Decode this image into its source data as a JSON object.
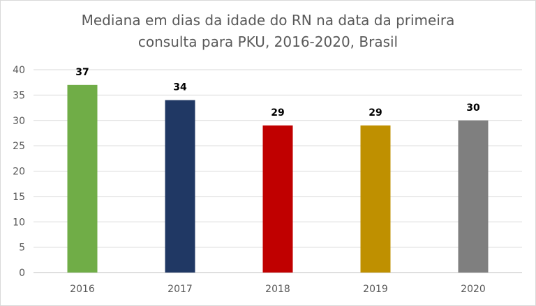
{
  "chart_data": {
    "type": "bar",
    "title_lines": [
      "Mediana em dias da idade do RN na data da primeira",
      "consulta para PKU, 2016-2020, Brasil"
    ],
    "categories": [
      "2016",
      "2017",
      "2018",
      "2019",
      "2020"
    ],
    "values": [
      37,
      34,
      29,
      29,
      30
    ],
    "colors": [
      "#70ad47",
      "#203864",
      "#c00000",
      "#bf9000",
      "#7f7f7f"
    ],
    "xlabel": "",
    "ylabel": "",
    "ylim": [
      0,
      40
    ],
    "ytick_step": 5,
    "grid": true,
    "legend": "none",
    "gridline_color": "#d9d9d9",
    "axis_color": "#bfbfbf"
  }
}
